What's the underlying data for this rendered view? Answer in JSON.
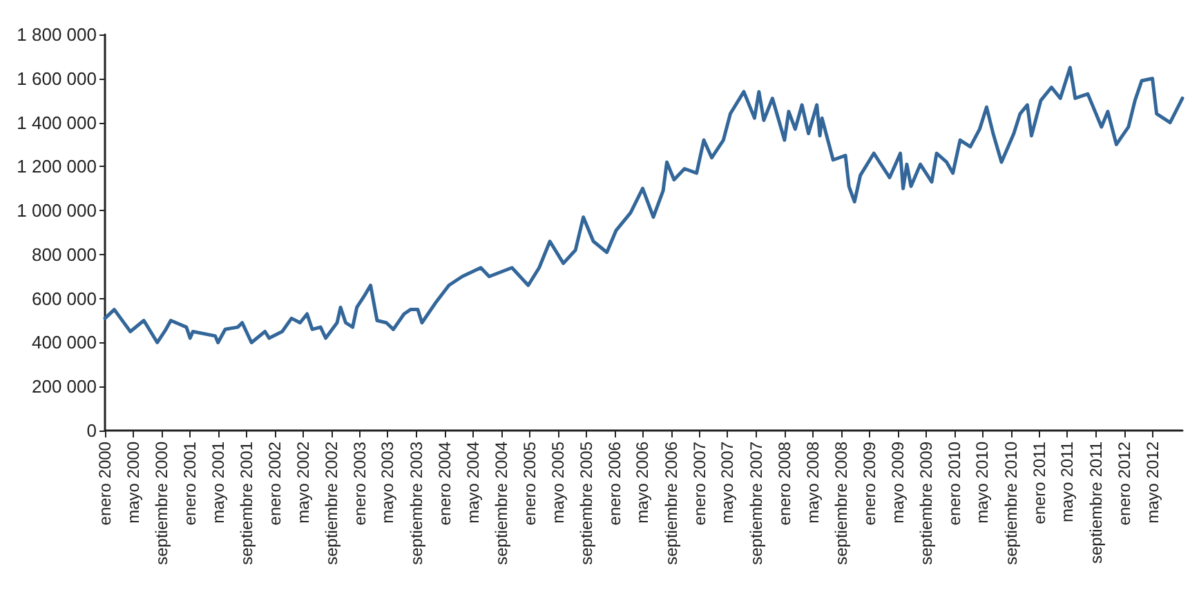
{
  "chart_data": {
    "type": "line",
    "x": [
      "2000-01-01",
      "2000-02-10",
      "2000-04-19",
      "2000-06-16",
      "2000-08-13",
      "2000-09-19",
      "2000-10-10",
      "2000-12-16",
      "2001-01-01",
      "2001-01-13",
      "2001-04-19",
      "2001-05-01",
      "2001-06-01",
      "2001-07-25",
      "2001-08-13",
      "2001-09-22",
      "2001-11-19",
      "2001-12-07",
      "2002-02-01",
      "2002-03-13",
      "2002-04-19",
      "2002-05-19",
      "2002-06-10",
      "2002-07-16",
      "2002-08-07",
      "2002-09-25",
      "2002-10-10",
      "2002-11-01",
      "2002-12-01",
      "2002-12-19",
      "2003-01-19",
      "2003-02-16",
      "2003-03-16",
      "2003-04-25",
      "2003-05-25",
      "2003-07-10",
      "2003-08-07",
      "2003-09-07",
      "2003-09-25",
      "2003-11-22",
      "2004-01-19",
      "2004-03-16",
      "2004-06-04",
      "2004-07-10",
      "2004-10-16",
      "2004-12-25",
      "2005-02-10",
      "2005-03-28",
      "2005-05-25",
      "2005-07-16",
      "2005-08-19",
      "2005-10-01",
      "2005-11-28",
      "2006-01-07",
      "2006-03-10",
      "2006-05-01",
      "2006-06-16",
      "2006-07-28",
      "2006-08-13",
      "2006-09-13",
      "2006-10-28",
      "2006-12-19",
      "2007-01-19",
      "2007-02-22",
      "2007-04-13",
      "2007-05-13",
      "2007-07-10",
      "2007-08-25",
      "2007-09-13",
      "2007-10-04",
      "2007-11-10",
      "2008-01-01",
      "2008-01-19",
      "2008-02-16",
      "2008-03-16",
      "2008-04-13",
      "2008-05-19",
      "2008-06-01",
      "2008-06-10",
      "2008-07-28",
      "2008-09-19",
      "2008-10-04",
      "2008-10-28",
      "2008-11-22",
      "2009-01-19",
      "2009-03-28",
      "2009-05-13",
      "2009-05-25",
      "2009-06-10",
      "2009-06-28",
      "2009-08-07",
      "2009-09-25",
      "2009-10-16",
      "2009-11-28",
      "2009-12-25",
      "2010-01-25",
      "2010-03-10",
      "2010-04-19",
      "2010-05-19",
      "2010-06-16",
      "2010-07-22",
      "2010-09-13",
      "2010-10-10",
      "2010-11-10",
      "2010-11-28",
      "2011-01-07",
      "2011-02-22",
      "2011-04-01",
      "2011-05-13",
      "2011-06-04",
      "2011-07-28",
      "2011-09-25",
      "2011-10-22",
      "2011-11-28",
      "2012-01-19",
      "2012-02-16",
      "2012-03-16",
      "2012-05-01",
      "2012-05-19",
      "2012-07-16",
      "2012-09-07"
    ],
    "series": [
      {
        "color": "#336699",
        "values": [
          510000,
          550000,
          450000,
          500000,
          400000,
          460000,
          500000,
          470000,
          420000,
          450000,
          430000,
          400000,
          460000,
          470000,
          490000,
          400000,
          450000,
          420000,
          450000,
          510000,
          490000,
          530000,
          460000,
          470000,
          420000,
          490000,
          560000,
          490000,
          470000,
          560000,
          610000,
          660000,
          500000,
          490000,
          460000,
          530000,
          550000,
          550000,
          490000,
          580000,
          660000,
          700000,
          740000,
          700000,
          740000,
          660000,
          740000,
          860000,
          760000,
          820000,
          970000,
          860000,
          810000,
          910000,
          990000,
          1100000,
          970000,
          1090000,
          1220000,
          1140000,
          1190000,
          1170000,
          1320000,
          1240000,
          1320000,
          1440000,
          1540000,
          1420000,
          1540000,
          1410000,
          1510000,
          1320000,
          1450000,
          1370000,
          1480000,
          1350000,
          1480000,
          1340000,
          1420000,
          1230000,
          1250000,
          1110000,
          1040000,
          1160000,
          1260000,
          1150000,
          1260000,
          1100000,
          1210000,
          1110000,
          1210000,
          1130000,
          1260000,
          1220000,
          1170000,
          1320000,
          1290000,
          1370000,
          1470000,
          1350000,
          1220000,
          1350000,
          1440000,
          1480000,
          1340000,
          1500000,
          1560000,
          1510000,
          1650000,
          1510000,
          1530000,
          1380000,
          1450000,
          1300000,
          1380000,
          1500000,
          1590000,
          1600000,
          1440000,
          1400000,
          1510000
        ]
      }
    ],
    "xlim": [
      "2000-01-01",
      "2012-09-07"
    ],
    "xticks": [
      {
        "value": "2000-01",
        "label": "enero 2000"
      },
      {
        "value": "2000-05",
        "label": "mayo 2000"
      },
      {
        "value": "2000-09",
        "label": "septiembre 2000"
      },
      {
        "value": "2001-01",
        "label": "enero 2001"
      },
      {
        "value": "2001-05",
        "label": "mayo 2001"
      },
      {
        "value": "2001-09",
        "label": "septiembre 2001"
      },
      {
        "value": "2002-01",
        "label": "enero 2002"
      },
      {
        "value": "2002-05",
        "label": "mayo 2002"
      },
      {
        "value": "2002-09",
        "label": "septiembre 2002"
      },
      {
        "value": "2003-01",
        "label": "enero 2003"
      },
      {
        "value": "2003-05",
        "label": "mayo 2003"
      },
      {
        "value": "2003-09",
        "label": "septiembre 2003"
      },
      {
        "value": "2004-01",
        "label": "enero 2004"
      },
      {
        "value": "2004-05",
        "label": "mayo 2004"
      },
      {
        "value": "2004-09",
        "label": "septiembre 2004"
      },
      {
        "value": "2005-01",
        "label": "enero 2005"
      },
      {
        "value": "2005-05",
        "label": "mayo 2005"
      },
      {
        "value": "2005-09",
        "label": "septiembre 2005"
      },
      {
        "value": "2006-01",
        "label": "enero 2006"
      },
      {
        "value": "2006-05",
        "label": "mayo 2006"
      },
      {
        "value": "2006-09",
        "label": "septiembre 2006"
      },
      {
        "value": "2007-01",
        "label": "enero 2007"
      },
      {
        "value": "2007-05",
        "label": "mayo 2007"
      },
      {
        "value": "2007-09",
        "label": "septiembre 2007"
      },
      {
        "value": "2008-01",
        "label": "enero 2008"
      },
      {
        "value": "2008-05",
        "label": "mayo 2008"
      },
      {
        "value": "2008-09",
        "label": "septiembre 2008"
      },
      {
        "value": "2009-01",
        "label": "enero 2009"
      },
      {
        "value": "2009-05",
        "label": "mayo 2009"
      },
      {
        "value": "2009-09",
        "label": "septiembre 2009"
      },
      {
        "value": "2010-01",
        "label": "enero 2010"
      },
      {
        "value": "2010-05",
        "label": "mayo 2010"
      },
      {
        "value": "2010-09",
        "label": "septiembre 2010"
      },
      {
        "value": "2011-01",
        "label": "enero 2011"
      },
      {
        "value": "2011-05",
        "label": "mayo 2011"
      },
      {
        "value": "2011-09",
        "label": "septiembre 2011"
      },
      {
        "value": "2012-01",
        "label": "enero 2012"
      },
      {
        "value": "2012-05",
        "label": "mayo 2012"
      }
    ],
    "ylim": [
      0,
      1800000
    ],
    "yticks": [
      0,
      {
        "value": 200000,
        "label": "200 000"
      },
      {
        "value": 400000,
        "label": "400 000"
      },
      {
        "value": 600000,
        "label": "600 000"
      },
      {
        "value": 800000,
        "label": "800 000"
      },
      {
        "value": 1000000,
        "label": "1 000 000"
      },
      {
        "value": 1200000,
        "label": "1 200 000"
      },
      {
        "value": 1400000,
        "label": "1 400 000"
      },
      {
        "value": 1600000,
        "label": "1 600 000"
      },
      {
        "value": 1800000,
        "label": "1 800 000"
      }
    ],
    "grid": false,
    "marker": "none",
    "line_style": "solid"
  }
}
